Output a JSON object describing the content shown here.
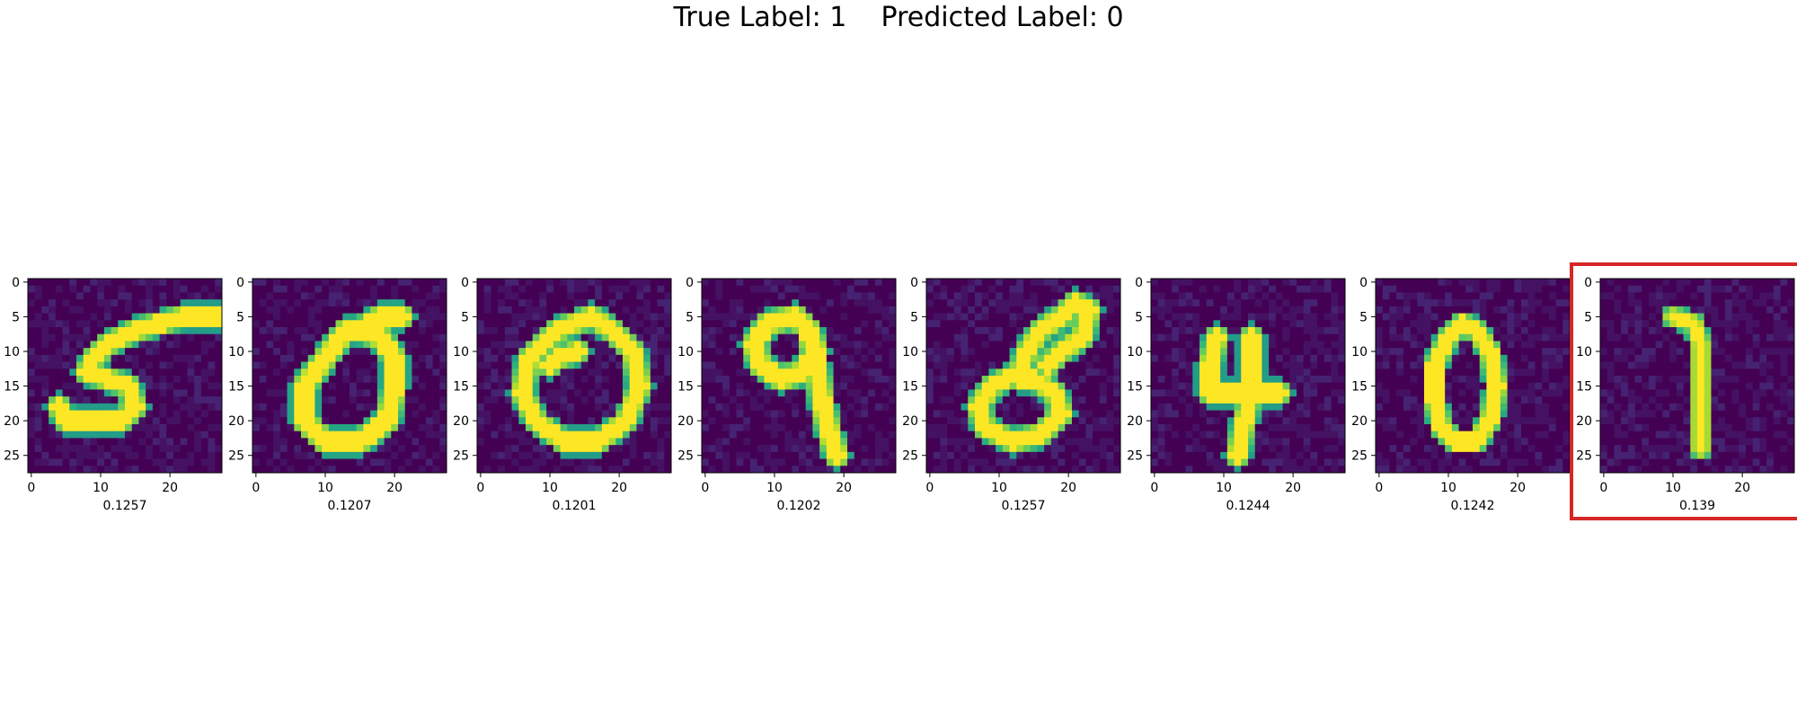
{
  "title": "True Label: 1    Predicted Label: 0",
  "highlight_color": "#d62728",
  "colormap": "viridis",
  "chart_data": {
    "type": "heatmap",
    "title": "True Label: 1    Predicted Label: 0",
    "image_size": [
      28,
      28
    ],
    "x_ticks": [
      "0",
      "10",
      "20"
    ],
    "y_ticks": [
      "0",
      "5",
      "10",
      "15",
      "20",
      "25"
    ],
    "value_range": [
      0,
      1
    ],
    "panels": [
      {
        "digit": "5",
        "score": "0.1257",
        "highlighted": false
      },
      {
        "digit": "0",
        "score": "0.1207",
        "highlighted": false
      },
      {
        "digit": "0",
        "score": "0.1201",
        "highlighted": false
      },
      {
        "digit": "9",
        "score": "0.1202",
        "highlighted": false
      },
      {
        "digit": "8",
        "score": "0.1257",
        "highlighted": false
      },
      {
        "digit": "4",
        "score": "0.1244",
        "highlighted": false
      },
      {
        "digit": "0",
        "score": "0.1242",
        "highlighted": false
      },
      {
        "digit": "1",
        "score": "0.139",
        "highlighted": true
      }
    ]
  }
}
